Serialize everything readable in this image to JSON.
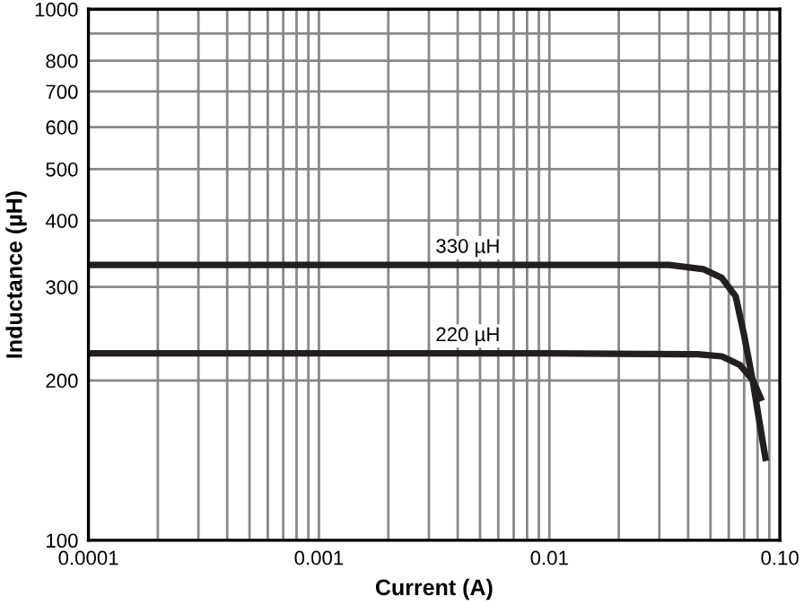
{
  "chart_data": {
    "type": "line",
    "xlabel": "Current (A)",
    "ylabel": "Inductance (µH)",
    "log": "xy",
    "grid": true,
    "legend": false,
    "marker": "none",
    "line_style": "solid",
    "xlim": [
      0.0001,
      0.1
    ],
    "ylim": [
      100,
      1000
    ],
    "xticks": [
      0.0001,
      {
        "value": 0.0002,
        "label": null
      },
      {
        "value": 0.0003,
        "label": null
      },
      {
        "value": 0.0004,
        "label": null
      },
      {
        "value": 0.0005,
        "label": null
      },
      {
        "value": 0.0006,
        "label": null
      },
      {
        "value": 0.0007,
        "label": null
      },
      {
        "value": 0.0008,
        "label": null
      },
      {
        "value": 0.0009,
        "label": null
      },
      0.001,
      {
        "value": 0.002,
        "label": null
      },
      {
        "value": 0.003,
        "label": null
      },
      {
        "value": 0.004,
        "label": null
      },
      {
        "value": 0.005,
        "label": null
      },
      {
        "value": 0.006,
        "label": null
      },
      {
        "value": 0.007,
        "label": null
      },
      {
        "value": 0.008,
        "label": null
      },
      {
        "value": 0.009,
        "label": null
      },
      0.01,
      {
        "value": 0.02,
        "label": null
      },
      {
        "value": 0.03,
        "label": null
      },
      {
        "value": 0.04,
        "label": null
      },
      {
        "value": 0.05,
        "label": null
      },
      {
        "value": 0.06,
        "label": null
      },
      {
        "value": 0.07,
        "label": null
      },
      {
        "value": 0.08,
        "label": null
      },
      {
        "value": 0.09,
        "label": null
      },
      {
        "value": 0.1,
        "label": "0.10"
      }
    ],
    "yticks": [
      100,
      200,
      300,
      400,
      500,
      600,
      700,
      800,
      {
        "value": 900,
        "label": null
      },
      1000
    ],
    "series": [
      {
        "name": "330 µH",
        "color": "#231f20",
        "x": [
          0.0001,
          0.001,
          0.01,
          0.033,
          0.0465,
          0.056,
          0.0643,
          0.07,
          0.0765,
          0.081,
          0.087
        ],
        "values": [
          330,
          330,
          330,
          330,
          324,
          312,
          288,
          243,
          198,
          170,
          141
        ]
      },
      {
        "name": "220 µH",
        "color": "#231f20",
        "x": [
          0.0001,
          0.001,
          0.01,
          0.044,
          0.056,
          0.067,
          0.0765,
          0.0835
        ],
        "values": [
          225,
          225,
          225,
          224,
          222,
          214,
          200,
          183
        ]
      }
    ]
  }
}
